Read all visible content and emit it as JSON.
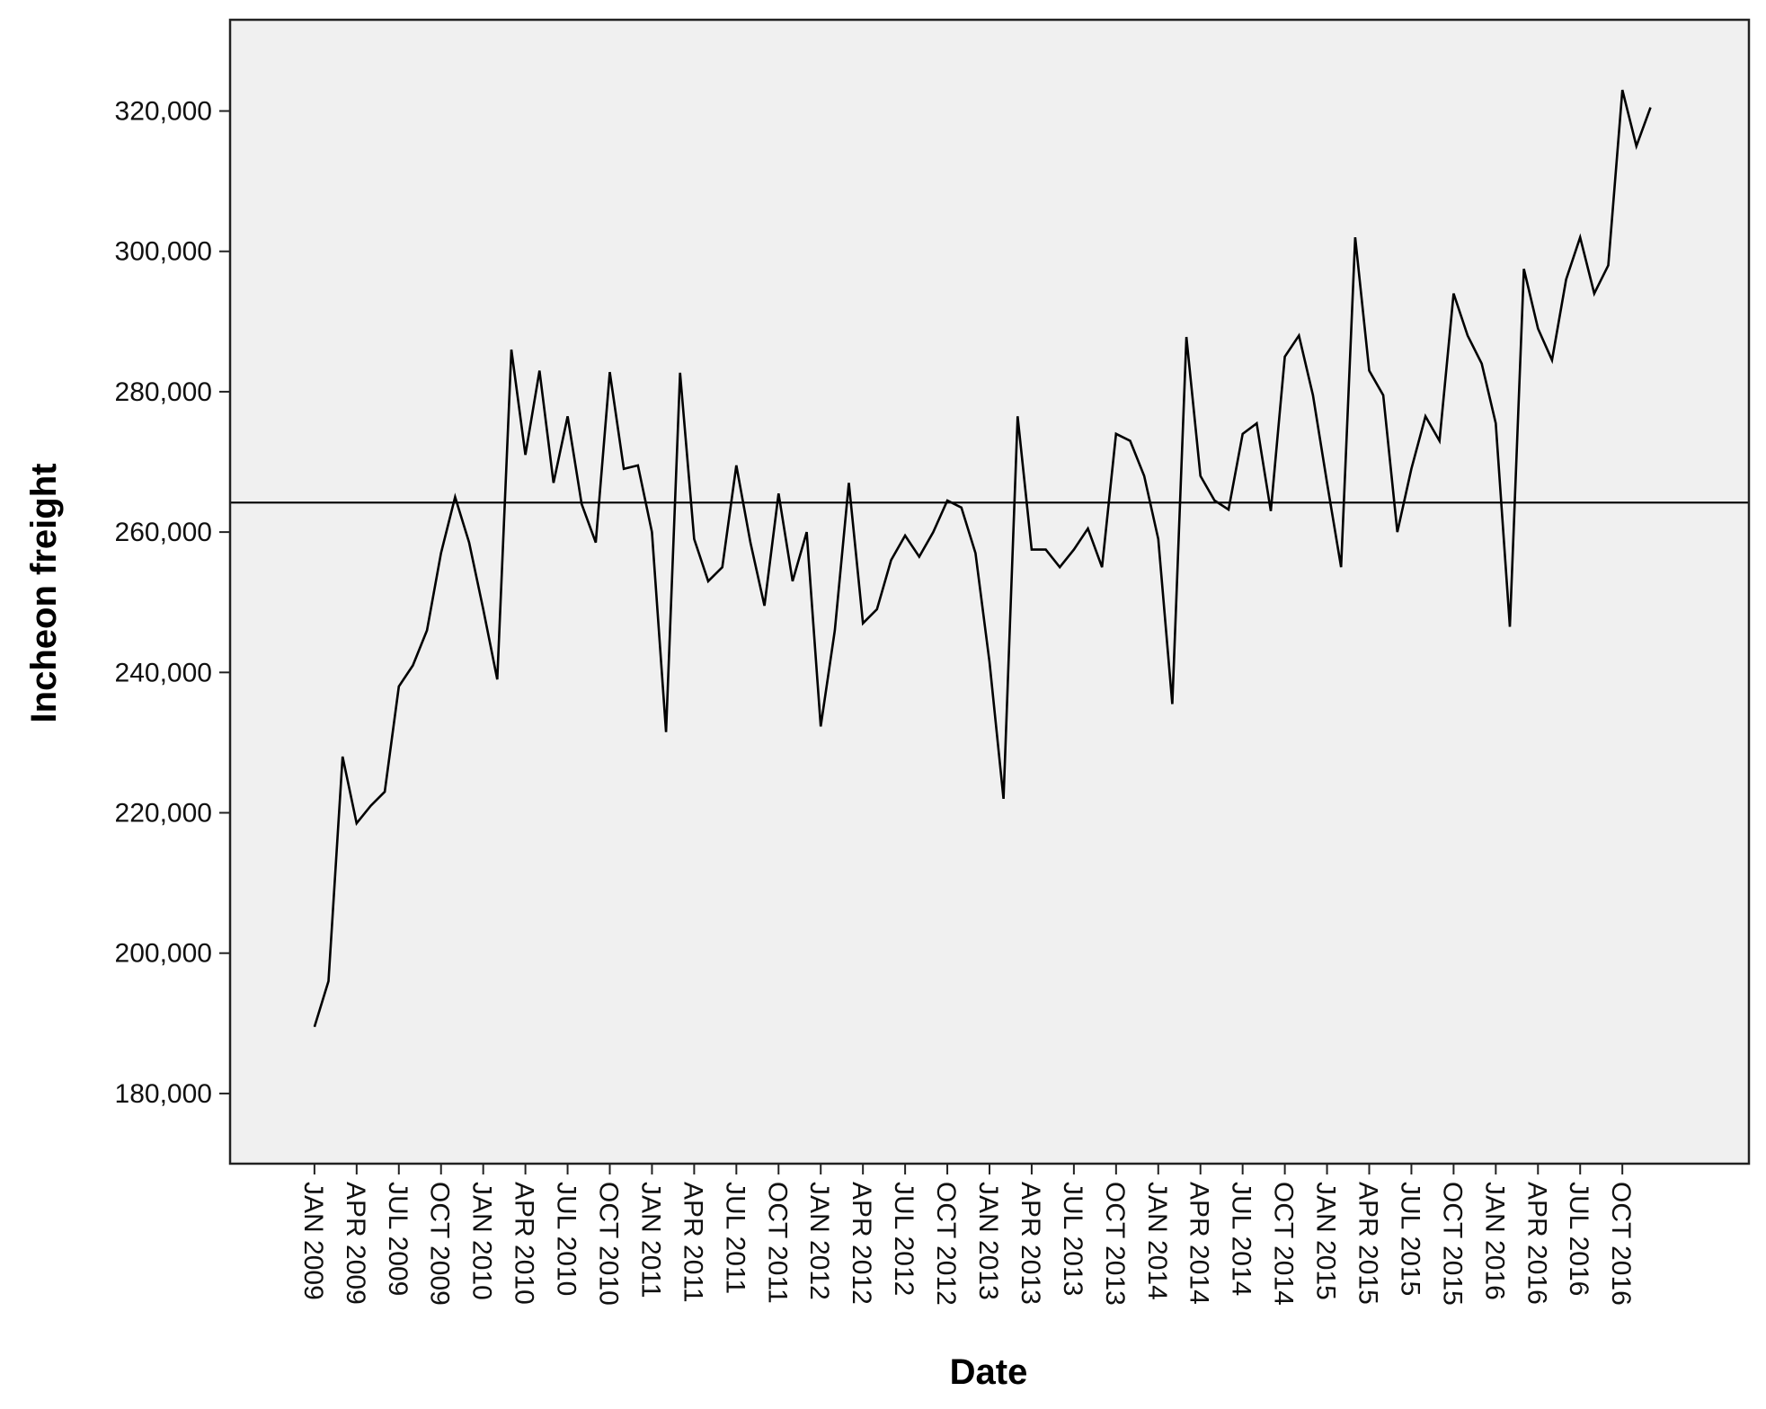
{
  "chart_data": {
    "type": "line",
    "xlabel": "Date",
    "ylabel": "Incheon freight",
    "ylim": [
      170000,
      333000
    ],
    "yticks": [
      180000,
      200000,
      220000,
      240000,
      260000,
      280000,
      300000,
      320000
    ],
    "ytick_labels": [
      "180,000",
      "200,000",
      "220,000",
      "240,000",
      "260,000",
      "280,000",
      "300,000",
      "320,000"
    ],
    "xlim": [
      "2008-07",
      "2017-07"
    ],
    "xticks": [
      "2009-01",
      "2009-04",
      "2009-07",
      "2009-10",
      "2010-01",
      "2010-04",
      "2010-07",
      "2010-10",
      "2011-01",
      "2011-04",
      "2011-07",
      "2011-10",
      "2012-01",
      "2012-04",
      "2012-07",
      "2012-10",
      "2013-01",
      "2013-04",
      "2013-07",
      "2013-10",
      "2014-01",
      "2014-04",
      "2014-07",
      "2014-10",
      "2015-01",
      "2015-04",
      "2015-07",
      "2015-10",
      "2016-01",
      "2016-04",
      "2016-07",
      "2016-10"
    ],
    "xtick_labels": [
      "JAN 2009",
      "APR 2009",
      "JUL 2009",
      "OCT 2009",
      "JAN 2010",
      "APR 2010",
      "JUL 2010",
      "OCT 2010",
      "JAN 2011",
      "APR 2011",
      "JUL 2011",
      "OCT 2011",
      "JAN 2012",
      "APR 2012",
      "JUL 2012",
      "OCT 2012",
      "JAN 2013",
      "APR 2013",
      "JUL 2013",
      "OCT 2013",
      "JAN 2014",
      "APR 2014",
      "JUL 2014",
      "OCT 2014",
      "JAN 2015",
      "APR 2015",
      "JUL 2015",
      "OCT 2015",
      "JAN 2016",
      "APR 2016",
      "JUL 2016",
      "OCT 2016"
    ],
    "reference_line": {
      "y": 264200
    },
    "grid": false,
    "legend": "none",
    "background": "#f0f0f0",
    "line_color": "#000000",
    "series": [
      {
        "x": [
          "2009-01",
          "2009-02",
          "2009-03",
          "2009-04",
          "2009-05",
          "2009-06",
          "2009-07",
          "2009-08",
          "2009-09",
          "2009-10",
          "2009-11",
          "2009-12",
          "2010-01",
          "2010-02",
          "2010-03",
          "2010-04",
          "2010-05",
          "2010-06",
          "2010-07",
          "2010-08",
          "2010-09",
          "2010-10",
          "2010-11",
          "2010-12",
          "2011-01",
          "2011-02",
          "2011-03",
          "2011-04",
          "2011-05",
          "2011-06",
          "2011-07",
          "2011-08",
          "2011-09",
          "2011-10",
          "2011-11",
          "2011-12",
          "2012-01",
          "2012-02",
          "2012-03",
          "2012-04",
          "2012-05",
          "2012-06",
          "2012-07",
          "2012-08",
          "2012-09",
          "2012-10",
          "2012-11",
          "2012-12",
          "2013-01",
          "2013-02",
          "2013-03",
          "2013-04",
          "2013-05",
          "2013-06",
          "2013-07",
          "2013-08",
          "2013-09",
          "2013-10",
          "2013-11",
          "2013-12",
          "2014-01",
          "2014-02",
          "2014-03",
          "2014-04",
          "2014-05",
          "2014-06",
          "2014-07",
          "2014-08",
          "2014-09",
          "2014-10",
          "2014-11",
          "2014-12",
          "2015-01",
          "2015-02",
          "2015-03",
          "2015-04",
          "2015-05",
          "2015-06",
          "2015-07",
          "2015-08",
          "2015-09",
          "2015-10",
          "2015-11",
          "2015-12",
          "2016-01",
          "2016-02",
          "2016-03",
          "2016-04",
          "2016-05",
          "2016-06",
          "2016-07",
          "2016-08",
          "2016-09",
          "2016-10",
          "2016-11",
          "2016-12"
        ],
        "values": [
          189500,
          196000,
          228000,
          218500,
          221000,
          223000,
          238000,
          241000,
          246000,
          257000,
          265000,
          258500,
          249000,
          239000,
          286000,
          271000,
          283000,
          267000,
          276500,
          264000,
          258500,
          282800,
          269000,
          269500,
          260000,
          231500,
          282700,
          259000,
          253000,
          255000,
          269500,
          258500,
          249500,
          265500,
          253000,
          260000,
          232300,
          246000,
          267000,
          247000,
          249000,
          256000,
          259500,
          256500,
          260000,
          264500,
          263500,
          257000,
          241500,
          222000,
          276500,
          257500,
          257500,
          255000,
          257500,
          260500,
          255000,
          274000,
          273000,
          268000,
          259000,
          235500,
          287800,
          268000,
          264500,
          263200,
          274000,
          275500,
          263000,
          285000,
          288000,
          279500,
          267000,
          255000,
          302000,
          283000,
          279500,
          260000,
          269000,
          276500,
          273000,
          294000,
          288000,
          284000,
          275500,
          246500,
          297500,
          289000,
          284500,
          296000,
          302000,
          294000,
          298000,
          323000,
          315000,
          320500
        ]
      }
    ]
  }
}
